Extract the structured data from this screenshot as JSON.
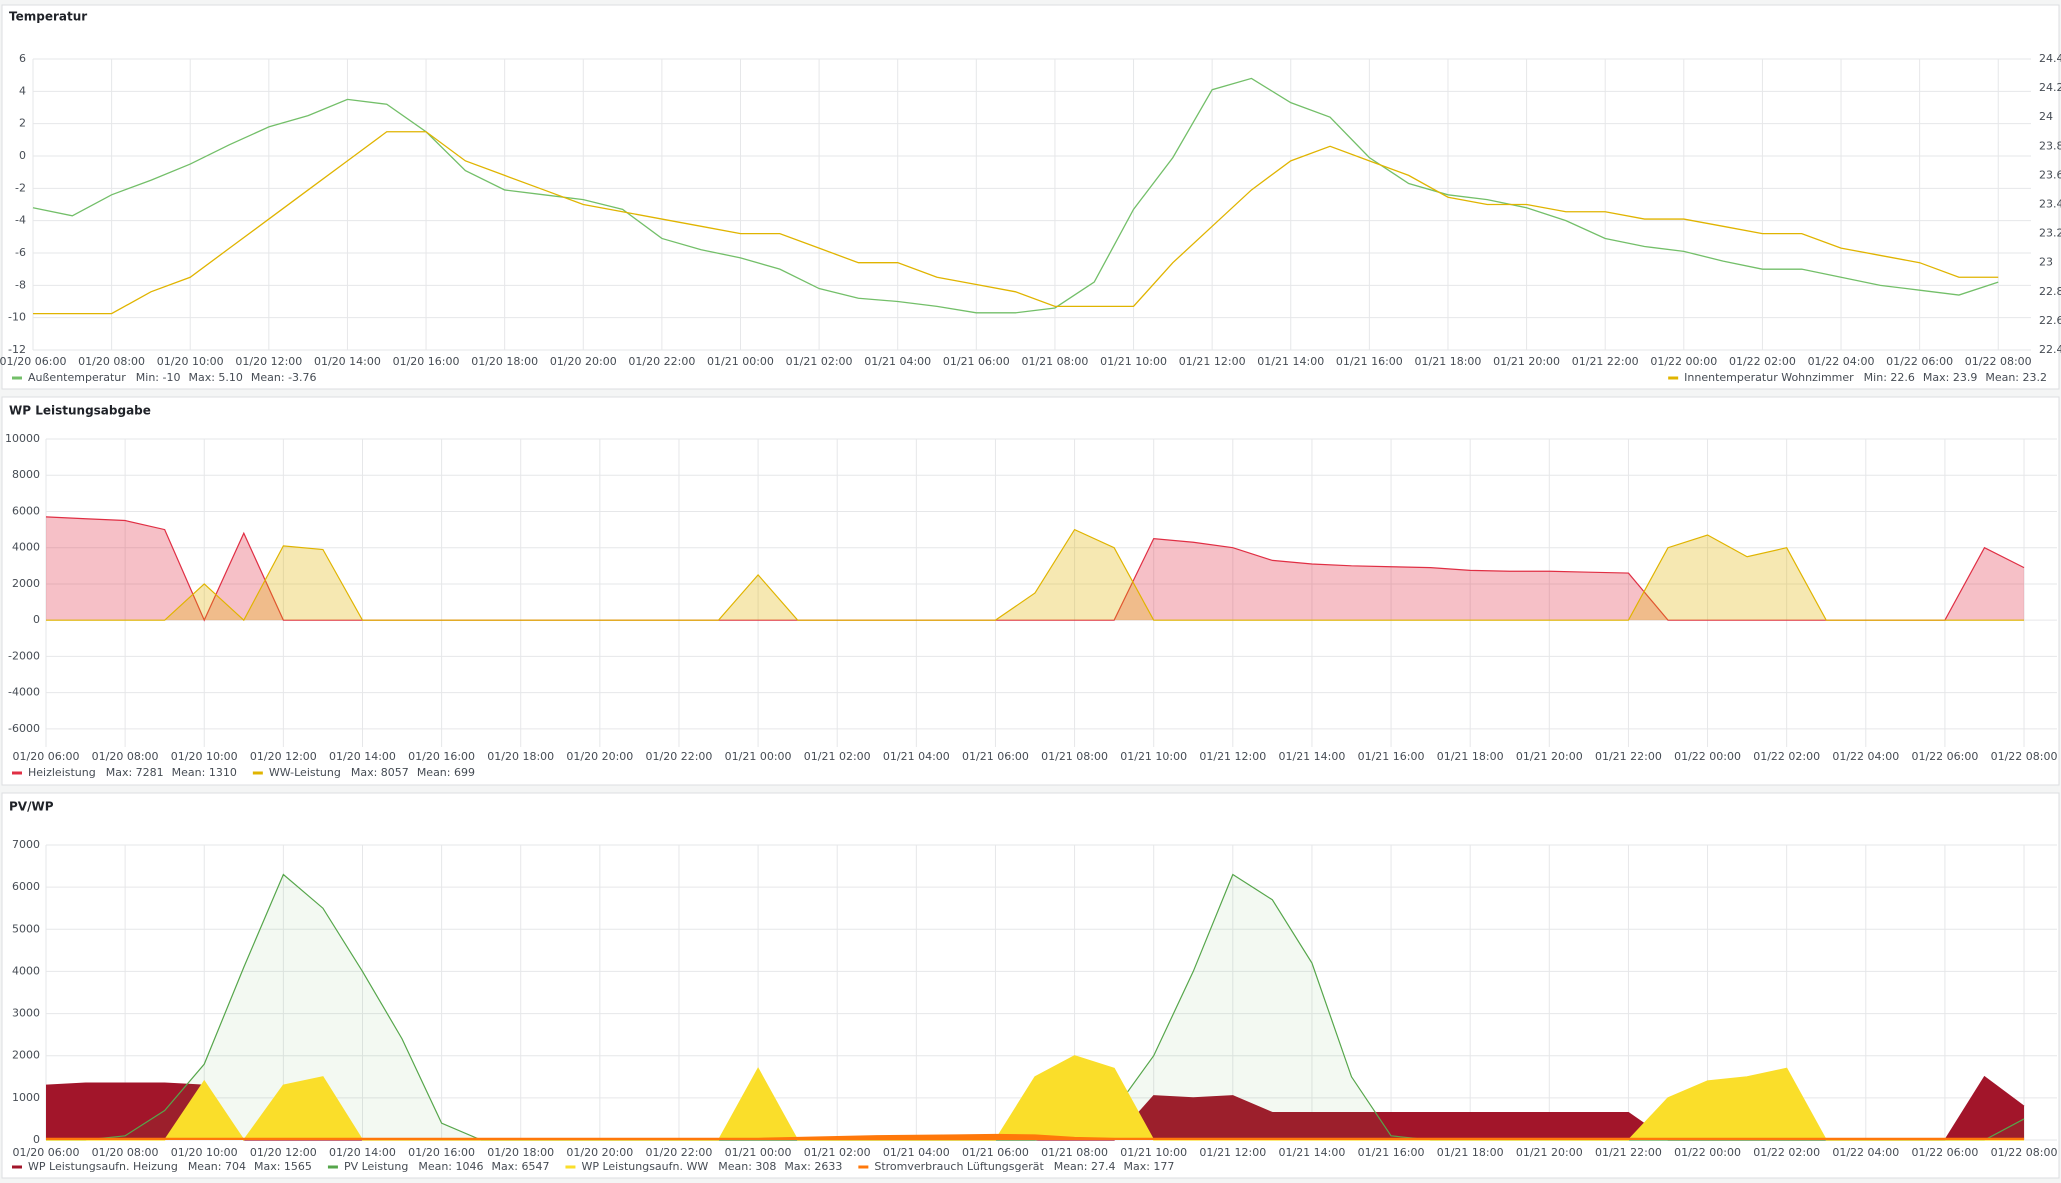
{
  "chart_data": [
    {
      "type": "line",
      "title": "Temperatur",
      "x": [
        "01/20 06:00",
        "01/20 07:00",
        "01/20 08:00",
        "01/20 09:00",
        "01/20 10:00",
        "01/20 11:00",
        "01/20 12:00",
        "01/20 13:00",
        "01/20 14:00",
        "01/20 15:00",
        "01/20 16:00",
        "01/20 17:00",
        "01/20 18:00",
        "01/20 19:00",
        "01/20 20:00",
        "01/20 21:00",
        "01/20 22:00",
        "01/20 23:00",
        "01/21 00:00",
        "01/21 01:00",
        "01/21 02:00",
        "01/21 03:00",
        "01/21 04:00",
        "01/21 05:00",
        "01/21 06:00",
        "01/21 07:00",
        "01/21 08:00",
        "01/21 09:00",
        "01/21 10:00",
        "01/21 11:00",
        "01/21 12:00",
        "01/21 13:00",
        "01/21 14:00",
        "01/21 15:00",
        "01/21 16:00",
        "01/21 17:00",
        "01/21 18:00",
        "01/21 19:00",
        "01/21 20:00",
        "01/21 21:00",
        "01/21 22:00",
        "01/21 23:00",
        "01/22 00:00",
        "01/22 01:00",
        "01/22 02:00",
        "01/22 03:00",
        "01/22 04:00",
        "01/22 05:00",
        "01/22 06:00",
        "01/22 07:00",
        "01/22 08:00"
      ],
      "xlim": [
        "01/20 06:00",
        "01/22 08:50"
      ],
      "xticks": [
        "01/20 06:00",
        "01/20 08:00",
        "01/20 10:00",
        "01/20 12:00",
        "01/20 14:00",
        "01/20 16:00",
        "01/20 18:00",
        "01/20 20:00",
        "01/20 22:00",
        "01/21 00:00",
        "01/21 02:00",
        "01/21 04:00",
        "01/21 06:00",
        "01/21 08:00",
        "01/21 10:00",
        "01/21 12:00",
        "01/21 14:00",
        "01/21 16:00",
        "01/21 18:00",
        "01/21 20:00",
        "01/21 22:00",
        "01/22 00:00",
        "01/22 02:00",
        "01/22 04:00",
        "01/22 06:00",
        "01/22 08:00"
      ],
      "ylim": [
        -12,
        6
      ],
      "yticks": [
        -12,
        -10,
        -8,
        -6,
        -4,
        -2,
        0,
        2,
        4,
        6
      ],
      "y2lim": [
        22.4,
        24.4
      ],
      "y2ticks": [
        22.4,
        22.6,
        22.8,
        23,
        23.2,
        23.4,
        23.6,
        23.8,
        24,
        24.2,
        24.4
      ],
      "grid": true,
      "series": [
        {
          "name": "Außentemperatur",
          "color": "#73bf69",
          "legend_stats": [
            "Min: -10",
            "Max: 5.10",
            "Mean: -3.76"
          ],
          "values": [
            -3.2,
            -3.7,
            -2.4,
            -1.5,
            -0.5,
            0.7,
            1.8,
            2.5,
            3.5,
            3.2,
            1.5,
            -0.9,
            -2.1,
            -2.4,
            -2.7,
            -3.3,
            -5.1,
            -5.8,
            -6.3,
            -7.0,
            -8.2,
            -8.8,
            -9.0,
            -9.3,
            -9.7,
            -9.7,
            -9.4,
            -7.8,
            -3.3,
            -0.1,
            4.1,
            4.8,
            3.3,
            2.4,
            -0.1,
            -1.7,
            -2.4,
            -2.7,
            -3.2,
            -4.0,
            -5.1,
            -5.6,
            -5.9,
            -6.5,
            -7.0,
            -7.0,
            -7.5,
            -8.0,
            -8.3,
            -8.6,
            -7.8
          ]
        },
        {
          "name": "Innentemperatur Wohnzimmer",
          "color": "#e0b400",
          "axis": "y2",
          "legend_stats": [
            "Min: 22.6",
            "Max: 23.9",
            "Mean: 23.2"
          ],
          "values": [
            22.65,
            22.65,
            22.65,
            22.8,
            22.9,
            23.1,
            23.3,
            23.5,
            23.7,
            23.9,
            23.9,
            23.7,
            23.6,
            23.5,
            23.4,
            23.35,
            23.3,
            23.25,
            23.2,
            23.2,
            23.1,
            23.0,
            23.0,
            22.9,
            22.85,
            22.8,
            22.7,
            22.7,
            22.7,
            23.0,
            23.25,
            23.5,
            23.7,
            23.8,
            23.7,
            23.6,
            23.45,
            23.4,
            23.4,
            23.35,
            23.35,
            23.3,
            23.3,
            23.25,
            23.2,
            23.2,
            23.1,
            23.05,
            23.0,
            22.9,
            22.9
          ]
        }
      ]
    },
    {
      "type": "area",
      "title": "WP Leistungsabgabe",
      "x": [
        "01/20 06:00",
        "01/20 07:00",
        "01/20 08:00",
        "01/20 09:00",
        "01/20 10:00",
        "01/20 11:00",
        "01/20 12:00",
        "01/20 13:00",
        "01/20 14:00",
        "01/20 15:00",
        "01/20 16:00",
        "01/20 17:00",
        "01/20 18:00",
        "01/20 19:00",
        "01/20 20:00",
        "01/20 21:00",
        "01/20 22:00",
        "01/20 23:00",
        "01/21 00:00",
        "01/21 01:00",
        "01/21 02:00",
        "01/21 03:00",
        "01/21 04:00",
        "01/21 05:00",
        "01/21 06:00",
        "01/21 07:00",
        "01/21 08:00",
        "01/21 09:00",
        "01/21 10:00",
        "01/21 11:00",
        "01/21 12:00",
        "01/21 13:00",
        "01/21 14:00",
        "01/21 15:00",
        "01/21 16:00",
        "01/21 17:00",
        "01/21 18:00",
        "01/21 19:00",
        "01/21 20:00",
        "01/21 21:00",
        "01/21 22:00",
        "01/21 23:00",
        "01/22 00:00",
        "01/22 01:00",
        "01/22 02:00",
        "01/22 03:00",
        "01/22 04:00",
        "01/22 05:00",
        "01/22 06:00",
        "01/22 07:00",
        "01/22 08:00"
      ],
      "xlim": [
        "01/20 06:00",
        "01/22 08:50"
      ],
      "xticks": [
        "01/20 06:00",
        "01/20 08:00",
        "01/20 10:00",
        "01/20 12:00",
        "01/20 14:00",
        "01/20 16:00",
        "01/20 18:00",
        "01/20 20:00",
        "01/20 22:00",
        "01/21 00:00",
        "01/21 02:00",
        "01/21 04:00",
        "01/21 06:00",
        "01/21 08:00",
        "01/21 10:00",
        "01/21 12:00",
        "01/21 14:00",
        "01/21 16:00",
        "01/21 18:00",
        "01/21 20:00",
        "01/21 22:00",
        "01/22 00:00",
        "01/22 02:00",
        "01/22 04:00",
        "01/22 06:00",
        "01/22 08:00"
      ],
      "ylim": [
        -7000,
        10000
      ],
      "yticks": [
        -6000,
        -4000,
        -2000,
        0,
        2000,
        4000,
        6000,
        8000,
        10000
      ],
      "grid": true,
      "series": [
        {
          "name": "Heizleistung",
          "color": "#e02f44",
          "fill": 0.3,
          "legend_stats": [
            "Max: 7281",
            "Mean: 1310"
          ],
          "values": [
            5700,
            5600,
            5500,
            5000,
            0,
            4800,
            0,
            0,
            0,
            0,
            0,
            0,
            0,
            0,
            0,
            0,
            0,
            0,
            0,
            0,
            0,
            0,
            0,
            0,
            0,
            0,
            0,
            0,
            4500,
            4300,
            4000,
            3300,
            3100,
            3000,
            2950,
            2900,
            2750,
            2700,
            2700,
            2650,
            2600,
            0,
            0,
            0,
            0,
            0,
            0,
            0,
            0,
            4000,
            2900
          ]
        },
        {
          "name": "WW-Leistung",
          "color": "#e0b400",
          "fill": 0.3,
          "legend_stats": [
            "Max: 8057",
            "Mean: 699"
          ],
          "values": [
            0,
            0,
            0,
            0,
            2000,
            0,
            4100,
            3900,
            0,
            0,
            0,
            0,
            0,
            0,
            0,
            0,
            0,
            0,
            2500,
            0,
            0,
            0,
            0,
            0,
            0,
            1500,
            5000,
            4000,
            0,
            0,
            0,
            0,
            0,
            0,
            0,
            0,
            0,
            0,
            0,
            0,
            0,
            4000,
            4700,
            3500,
            4000,
            0,
            0,
            0,
            0,
            0,
            0
          ]
        }
      ]
    },
    {
      "type": "area",
      "title": "PV/WP",
      "x": [
        "01/20 06:00",
        "01/20 07:00",
        "01/20 08:00",
        "01/20 09:00",
        "01/20 10:00",
        "01/20 11:00",
        "01/20 12:00",
        "01/20 13:00",
        "01/20 14:00",
        "01/20 15:00",
        "01/20 16:00",
        "01/20 17:00",
        "01/20 18:00",
        "01/20 19:00",
        "01/20 20:00",
        "01/20 21:00",
        "01/20 22:00",
        "01/20 23:00",
        "01/21 00:00",
        "01/21 01:00",
        "01/21 02:00",
        "01/21 03:00",
        "01/21 04:00",
        "01/21 05:00",
        "01/21 06:00",
        "01/21 07:00",
        "01/21 08:00",
        "01/21 09:00",
        "01/21 10:00",
        "01/21 11:00",
        "01/21 12:00",
        "01/21 13:00",
        "01/21 14:00",
        "01/21 15:00",
        "01/21 16:00",
        "01/21 17:00",
        "01/21 18:00",
        "01/21 19:00",
        "01/21 20:00",
        "01/21 21:00",
        "01/21 22:00",
        "01/21 23:00",
        "01/22 00:00",
        "01/22 01:00",
        "01/22 02:00",
        "01/22 03:00",
        "01/22 04:00",
        "01/22 05:00",
        "01/22 06:00",
        "01/22 07:00",
        "01/22 08:00"
      ],
      "xlim": [
        "01/20 06:00",
        "01/22 08:50"
      ],
      "xticks": [
        "01/20 06:00",
        "01/20 08:00",
        "01/20 10:00",
        "01/20 12:00",
        "01/20 14:00",
        "01/20 16:00",
        "01/20 18:00",
        "01/20 20:00",
        "01/20 22:00",
        "01/21 00:00",
        "01/21 02:00",
        "01/21 04:00",
        "01/21 06:00",
        "01/21 08:00",
        "01/21 10:00",
        "01/21 12:00",
        "01/21 14:00",
        "01/21 16:00",
        "01/21 18:00",
        "01/21 20:00",
        "01/21 22:00",
        "01/22 00:00",
        "01/22 02:00",
        "01/22 04:00",
        "01/22 06:00",
        "01/22 08:00"
      ],
      "ylim": [
        0,
        7000
      ],
      "yticks": [
        0,
        1000,
        2000,
        3000,
        4000,
        5000,
        6000,
        7000
      ],
      "grid": true,
      "series": [
        {
          "name": "WP Leistungsaufn. Heizung",
          "color": "#a2152a",
          "fill": 1,
          "legend_stats": [
            "Mean: 704",
            "Max: 1565"
          ],
          "values": [
            1300,
            1350,
            1350,
            1350,
            1300,
            0,
            0,
            0,
            0,
            0,
            0,
            0,
            0,
            0,
            0,
            0,
            0,
            0,
            0,
            0,
            0,
            0,
            0,
            0,
            0,
            0,
            0,
            0,
            1050,
            1000,
            1050,
            650,
            650,
            650,
            650,
            650,
            650,
            650,
            650,
            650,
            650,
            0,
            0,
            0,
            0,
            0,
            0,
            0,
            0,
            1500,
            800
          ]
        },
        {
          "name": "PV Leistung",
          "color": "#56a64b",
          "fill": 0.07,
          "legend_stats": [
            "Mean: 1046",
            "Max: 6547"
          ],
          "values": [
            0,
            0,
            100,
            700,
            1800,
            4100,
            6300,
            5500,
            4000,
            2400,
            400,
            0,
            0,
            0,
            0,
            0,
            0,
            0,
            0,
            0,
            0,
            0,
            0,
            0,
            0,
            0,
            200,
            700,
            2000,
            4000,
            6300,
            5700,
            4200,
            1500,
            100,
            0,
            0,
            0,
            0,
            0,
            0,
            0,
            0,
            0,
            0,
            0,
            0,
            0,
            0,
            0,
            500
          ]
        },
        {
          "name": "WP Leistungsaufn. WW",
          "color": "#fade2a",
          "fill": 1,
          "legend_stats": [
            "Mean: 308",
            "Max: 2633"
          ],
          "values": [
            0,
            0,
            0,
            0,
            1400,
            0,
            1300,
            1500,
            0,
            0,
            0,
            0,
            0,
            0,
            0,
            0,
            0,
            0,
            1700,
            0,
            0,
            0,
            0,
            0,
            0,
            1500,
            2000,
            1700,
            0,
            0,
            0,
            0,
            0,
            0,
            0,
            0,
            0,
            0,
            0,
            0,
            0,
            1000,
            1400,
            1500,
            1700,
            0,
            0,
            0,
            0,
            0,
            0
          ]
        },
        {
          "name": "Stromverbrauch Lüftungsgerät",
          "color": "#ff780a",
          "fill": 1,
          "legend_stats": [
            "Mean: 27.4",
            "Max: 177"
          ],
          "values": [
            40,
            40,
            40,
            40,
            40,
            40,
            40,
            40,
            40,
            40,
            40,
            40,
            40,
            40,
            40,
            40,
            40,
            40,
            40,
            60,
            80,
            100,
            110,
            120,
            130,
            120,
            60,
            40,
            40,
            40,
            40,
            40,
            40,
            40,
            40,
            40,
            40,
            40,
            40,
            40,
            40,
            40,
            40,
            40,
            40,
            40,
            40,
            40,
            40,
            40,
            40
          ]
        }
      ]
    }
  ]
}
